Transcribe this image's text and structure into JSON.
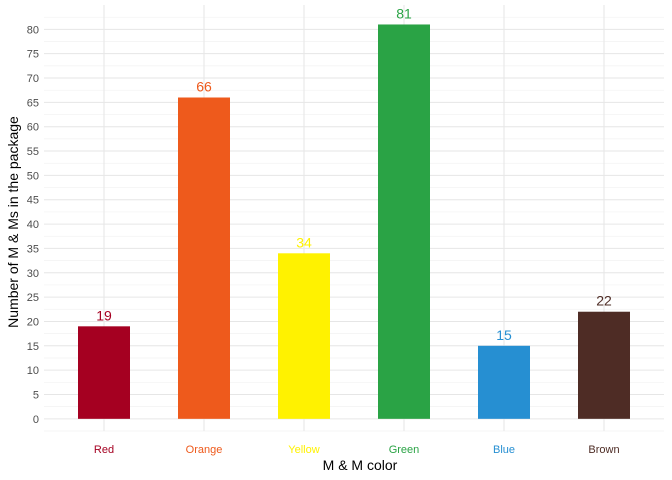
{
  "chart_data": {
    "type": "bar",
    "title": "",
    "xlabel": "M & M color",
    "ylabel": "Number of M & Ms in the package",
    "categories": [
      "Red",
      "Orange",
      "Yellow",
      "Green",
      "Blue",
      "Brown"
    ],
    "values": [
      19,
      66,
      34,
      81,
      15,
      22
    ],
    "colors": [
      "#A50021",
      "#EE5A1C",
      "#FFF200",
      "#2AA345",
      "#268FD2",
      "#4E2C25"
    ],
    "data_labels": [
      "19",
      "66",
      "34",
      "81",
      "15",
      "22"
    ],
    "ylim": [
      -2.5,
      85
    ],
    "yticks": [
      0,
      5,
      10,
      15,
      20,
      25,
      30,
      35,
      40,
      45,
      50,
      55,
      60,
      65,
      70,
      75,
      80
    ],
    "ytick_labels": [
      "0",
      "5",
      "10",
      "15",
      "20",
      "25",
      "30",
      "35",
      "40",
      "45",
      "50",
      "55",
      "60",
      "65",
      "70",
      "75",
      "80"
    ],
    "grid": true,
    "legend": "none"
  }
}
